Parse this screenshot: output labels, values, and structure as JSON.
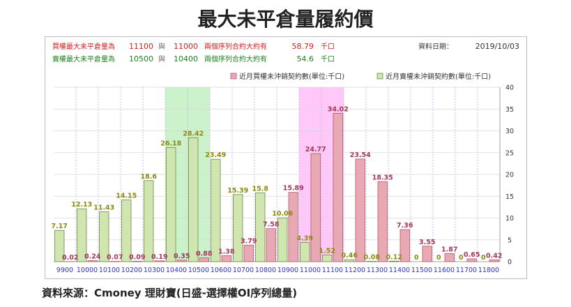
{
  "title": "最大未平倉量履約價",
  "source": "資料來源：Cmoney 理財寶(日盛-選擇權OI序列總量)",
  "colors": {
    "call": "#e8a8b4",
    "call_stroke": "#b05868",
    "call_label": "#a0385a",
    "put": "#cfe6b0",
    "put_stroke": "#6c8a3c",
    "put_label": "#8a8a10",
    "call_text": "#d02020",
    "put_text": "#208020",
    "call_highlight": "#ffc8f8",
    "put_highlight": "#ccf2cc",
    "tick": "#3030c8"
  },
  "info": {
    "call_row": {
      "prefix": "買權最大未平倉量為",
      "strike1": "11100",
      "and": "與",
      "strike2": "11000",
      "mid": "兩個序列合約大約有",
      "amount": "58.79",
      "unit": "千口"
    },
    "put_row": {
      "prefix": "賣權最大未平倉量為",
      "strike1": "10500",
      "and": "與",
      "strike2": "10400",
      "mid": "兩個序列合約大約有",
      "amount": "54.6",
      "unit": "千口"
    },
    "date_label": "資料日期：",
    "date": "2019/10/03"
  },
  "chart_data": {
    "type": "bar",
    "categories": [
      "9900",
      "10000",
      "10100",
      "10200",
      "10300",
      "10400",
      "10500",
      "10600",
      "10700",
      "10800",
      "10900",
      "11000",
      "11100",
      "11200",
      "11300",
      "11400",
      "11500",
      "11600",
      "11700",
      "11800"
    ],
    "series": [
      {
        "name": "近月買權未沖銷契約數(單位:千口)",
        "values": [
          0.02,
          0.24,
          0.07,
          0.09,
          0.19,
          0.35,
          0.88,
          1.38,
          3.79,
          7.58,
          15.89,
          24.77,
          34.02,
          23.54,
          18.35,
          7.36,
          3.55,
          1.87,
          0.65,
          0.42
        ]
      },
      {
        "name": "近月賣權未沖銷契約數(單位:千口)",
        "values": [
          7.17,
          12.13,
          11.43,
          14.15,
          18.6,
          26.18,
          28.42,
          23.49,
          15.39,
          15.8,
          10.06,
          4.39,
          1.52,
          0.46,
          0.08,
          0.12,
          0,
          0,
          0,
          0
        ]
      }
    ],
    "label_texts": {
      "call": [
        "0.02",
        "0.24",
        "0.07",
        "0.09",
        "0.19",
        "0.35",
        "0.88",
        "1.38",
        "3.79",
        "7.58",
        "15.89",
        "24.77",
        "34.02",
        "23.54",
        "18.35",
        "7.36",
        "3.55",
        "1.87",
        "0.65",
        "0.42"
      ],
      "put": [
        "7.17",
        "12.13",
        "11.43",
        "14.15",
        "18.6",
        "26.18",
        "28.42",
        "23.49",
        "15.39",
        "15.8",
        "10.06",
        "4.39",
        "1.52",
        "0.46",
        "0.08",
        "0.12",
        "0",
        "0",
        "0",
        "0"
      ]
    },
    "yticks": [
      "0",
      "5",
      "10",
      "15",
      "20",
      "25",
      "30",
      "35",
      "40"
    ],
    "ylim": [
      0,
      40
    ],
    "y_axis_side": "right",
    "legend_position": "top",
    "highlight": {
      "put": [
        "10400",
        "10500"
      ],
      "call": [
        "11000",
        "11100"
      ]
    }
  }
}
